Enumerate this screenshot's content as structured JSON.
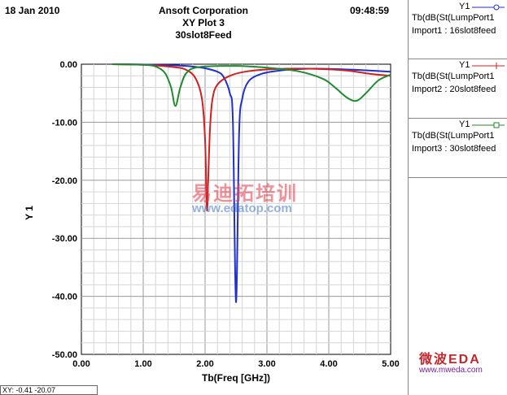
{
  "header": {
    "date": "18 Jan 2010",
    "time": "09:48:59",
    "company": "Ansoft Corporation",
    "plot_title": "XY Plot 3",
    "subtitle": "30slot8Feed"
  },
  "legend": [
    {
      "y_label": "Y1",
      "expr": "Tb(dB(St(LumpPort1",
      "source": "Import1 : 16slot8feed",
      "color": "#2030c8",
      "marker": "circle"
    },
    {
      "y_label": "Y1",
      "expr": "Tb(dB(St(LumpPort1",
      "source": "Import2 : 20slot8feed",
      "color": "#d02020",
      "marker": "plus"
    },
    {
      "y_label": "Y1",
      "expr": "Tb(dB(St(LumpPort1",
      "source": "Import3 : 30slot8feed",
      "color": "#208a30",
      "marker": "square"
    }
  ],
  "status": {
    "text": "XY: -0.41 -20.07"
  },
  "watermark": {
    "line1": "易迪拓培训",
    "line2": "www.edatop.com"
  },
  "logo": {
    "line1": "微波EDA",
    "line2": "www.mweda.com"
  },
  "chart_data": {
    "type": "line",
    "xlabel": "Tb(Freq [GHz])",
    "ylabel": "Y 1",
    "xlim": [
      0,
      5
    ],
    "ylim": [
      -50,
      0
    ],
    "x_ticks": [
      "0.00",
      "1.00",
      "2.00",
      "3.00",
      "4.00",
      "5.00"
    ],
    "y_ticks": [
      "0.00",
      "-10.00",
      "-20.00",
      "-30.00",
      "-40.00",
      "-50.00"
    ],
    "grid": true,
    "series": [
      {
        "name": "Import1 : 16slot8feed",
        "color": "#2030c8",
        "x": [
          0.5,
          1.0,
          1.5,
          1.8,
          2.0,
          2.2,
          2.3,
          2.4,
          2.45,
          2.5,
          2.55,
          2.6,
          2.7,
          2.9,
          3.2,
          3.6,
          4.0,
          4.5,
          5.0
        ],
        "y": [
          0,
          -0.05,
          -0.2,
          -0.4,
          -0.7,
          -1.3,
          -2.2,
          -5,
          -10,
          -41,
          -12,
          -6,
          -3,
          -1.7,
          -1.1,
          -0.8,
          -0.8,
          -1.0,
          -1.3
        ]
      },
      {
        "name": "Import2 : 20slot8feed",
        "color": "#d02020",
        "x": [
          0.5,
          1.0,
          1.5,
          1.7,
          1.85,
          1.95,
          2.0,
          2.03,
          2.05,
          2.08,
          2.12,
          2.2,
          2.4,
          2.7,
          3.2,
          3.8,
          4.3,
          4.7,
          5.0
        ],
        "y": [
          0,
          -0.1,
          -0.5,
          -1.0,
          -2.5,
          -6,
          -13,
          -25,
          -20,
          -11,
          -6,
          -3.5,
          -2.0,
          -1.2,
          -0.8,
          -0.8,
          -1.1,
          -1.7,
          -2.0
        ]
      },
      {
        "name": "Import3 : 30slot8feed",
        "color": "#208a30",
        "x": [
          0.5,
          1.0,
          1.2,
          1.35,
          1.45,
          1.52,
          1.6,
          1.7,
          1.9,
          2.5,
          3.0,
          3.5,
          3.9,
          4.1,
          4.3,
          4.45,
          4.6,
          4.8,
          5.0
        ],
        "y": [
          0,
          -0.1,
          -0.4,
          -1.5,
          -4,
          -7.2,
          -4,
          -1.5,
          -0.5,
          -0.3,
          -0.6,
          -1.2,
          -2.5,
          -4,
          -5.8,
          -6.3,
          -5,
          -2.8,
          -1.8
        ]
      }
    ]
  }
}
